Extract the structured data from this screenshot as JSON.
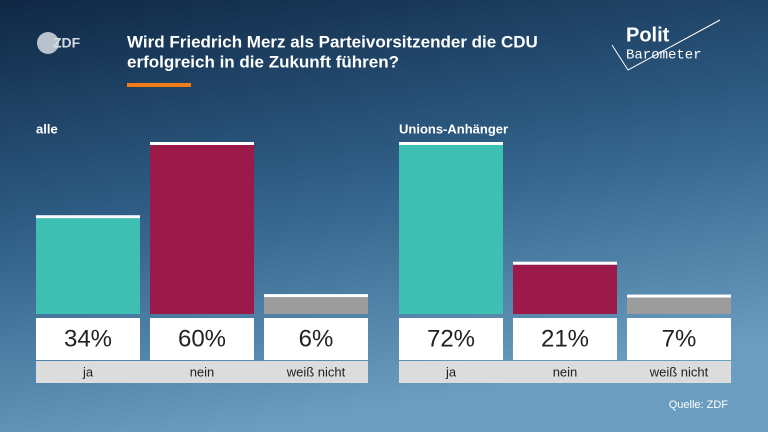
{
  "header": {
    "logo": "ZDF",
    "title_lines": [
      "Wird Friedrich Merz als Parteivorsitzender die CDU",
      "erfolgreich in die Zukunft führen?"
    ],
    "brand": [
      "Polit",
      "Barometer"
    ]
  },
  "chart_data": [
    {
      "type": "bar",
      "title": "alle",
      "categories": [
        "ja",
        "nein",
        "weiß nicht"
      ],
      "values": [
        34,
        60,
        6
      ],
      "value_labels": [
        "34%",
        "60%",
        "6%"
      ],
      "colors": [
        "#3dbfb1",
        "#9c1a4a",
        "#9c9c9c"
      ],
      "ylim": [
        0,
        60
      ]
    },
    {
      "type": "bar",
      "title": "Unions-Anhänger",
      "categories": [
        "ja",
        "nein",
        "weiß nicht"
      ],
      "values": [
        72,
        21,
        7
      ],
      "value_labels": [
        "72%",
        "21%",
        "7%"
      ],
      "colors": [
        "#3dbfb1",
        "#9c1a4a",
        "#9c9c9c"
      ],
      "ylim": [
        0,
        72
      ]
    }
  ],
  "source": "Quelle: ZDF"
}
